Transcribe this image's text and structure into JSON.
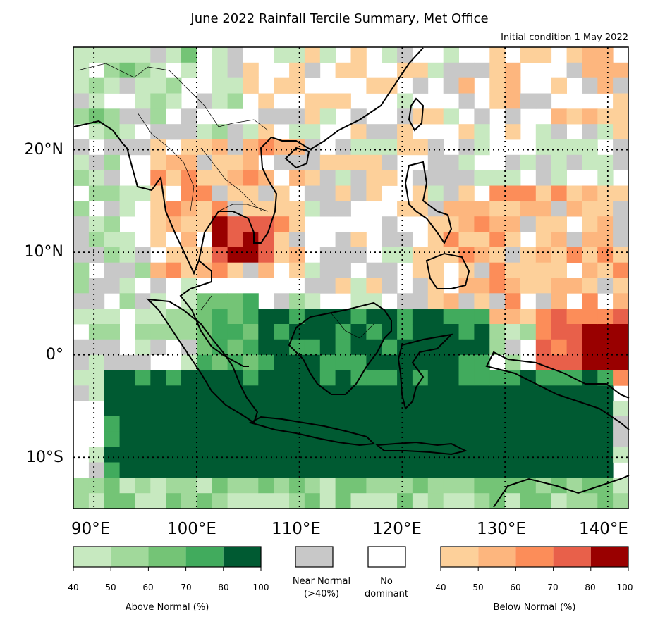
{
  "title": "June 2022 Rainfall Tercile Summary, Met Office",
  "subtitle": "Initial condition 1 May 2022",
  "latitude_labels": [
    "20°N",
    "10°N",
    "0°",
    "10°S"
  ],
  "longitude_labels": [
    "90°E",
    "100°E",
    "110°E",
    "120°E",
    "130°E",
    "140°E"
  ],
  "legend": {
    "above": {
      "caption": "Above Normal (%)",
      "ticks": [
        "40",
        "50",
        "60",
        "70",
        "80",
        "100"
      ],
      "colors": [
        "#c7e9c0",
        "#a1d99b",
        "#74c476",
        "#41ab5d",
        "#005a32"
      ]
    },
    "near": {
      "caption_line1": "Near Normal",
      "caption_line2": "(>40%)",
      "color": "#c8c8c8"
    },
    "none": {
      "caption_line1": "No",
      "caption_line2": "dominant",
      "color": "#ffffff"
    },
    "below": {
      "caption": "Below Normal (%)",
      "ticks": [
        "40",
        "50",
        "60",
        "70",
        "80",
        "100"
      ],
      "colors": [
        "#fdd09a",
        "#fdb67e",
        "#fc8d59",
        "#e8604a",
        "#990000"
      ]
    }
  },
  "map_extent": {
    "lon": [
      88,
      142
    ],
    "lat": [
      -15,
      30
    ]
  }
}
